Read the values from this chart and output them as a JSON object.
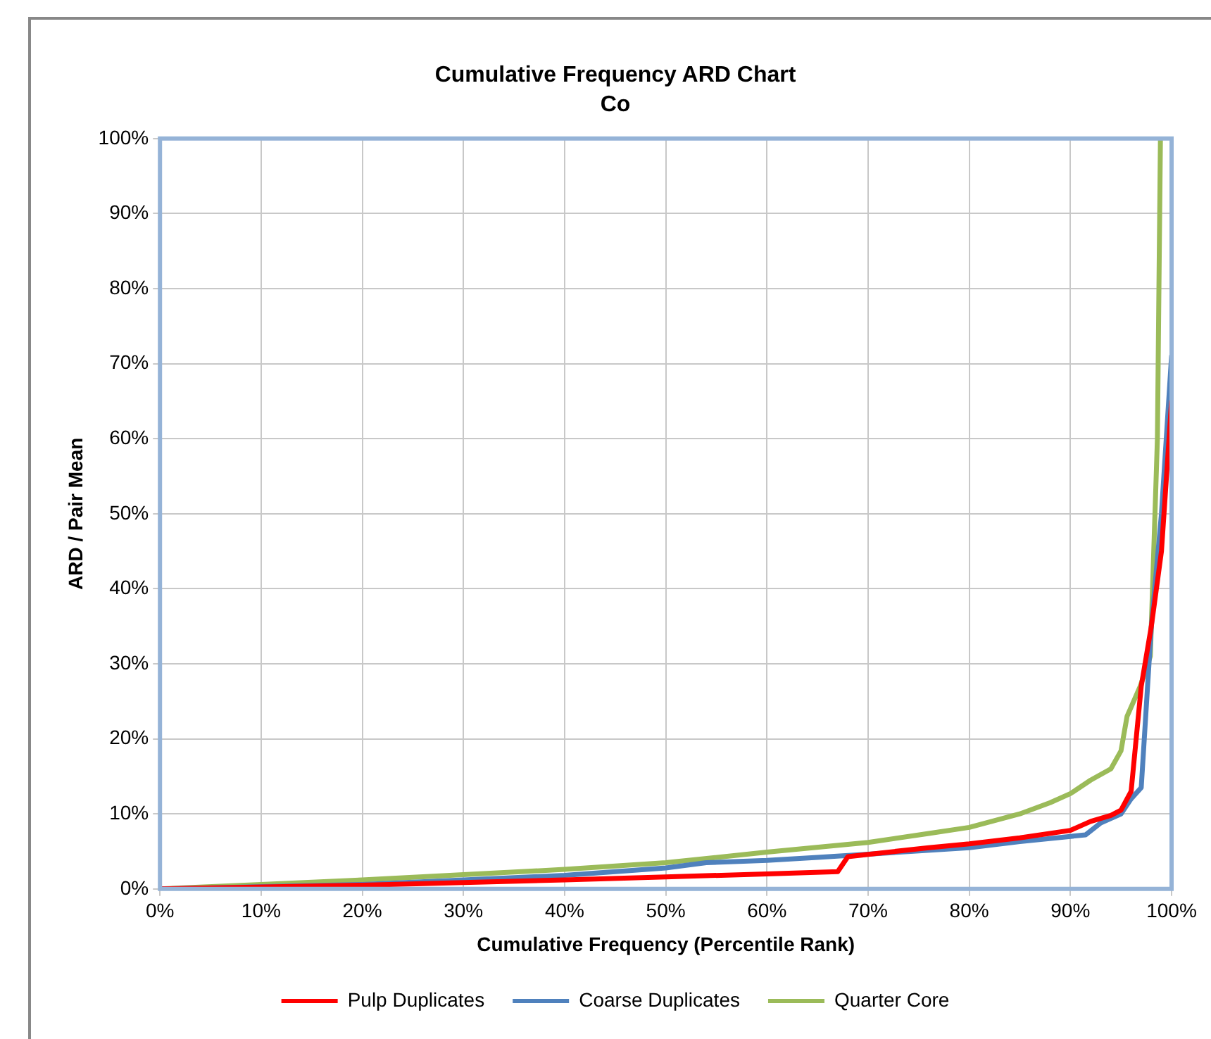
{
  "chart_data": {
    "type": "line",
    "title": "Cumulative Frequency ARD Chart",
    "subtitle": "Co",
    "xlabel": "Cumulative Frequency (Percentile Rank)",
    "ylabel": "ARD / Pair Mean",
    "xlim": [
      0,
      100
    ],
    "ylim": [
      0,
      100
    ],
    "xticks": [
      {
        "value": 0,
        "label": "0%"
      },
      {
        "value": 10,
        "label": "10%"
      },
      {
        "value": 20,
        "label": "20%"
      },
      {
        "value": 30,
        "label": "30%"
      },
      {
        "value": 40,
        "label": "40%"
      },
      {
        "value": 50,
        "label": "50%"
      },
      {
        "value": 60,
        "label": "60%"
      },
      {
        "value": 70,
        "label": "70%"
      },
      {
        "value": 80,
        "label": "80%"
      },
      {
        "value": 90,
        "label": "90%"
      },
      {
        "value": 100,
        "label": "100%"
      }
    ],
    "yticks": [
      {
        "value": 0,
        "label": "0%"
      },
      {
        "value": 10,
        "label": "10%"
      },
      {
        "value": 20,
        "label": "20%"
      },
      {
        "value": 30,
        "label": "30%"
      },
      {
        "value": 40,
        "label": "40%"
      },
      {
        "value": 50,
        "label": "50%"
      },
      {
        "value": 60,
        "label": "60%"
      },
      {
        "value": 70,
        "label": "70%"
      },
      {
        "value": 80,
        "label": "80%"
      },
      {
        "value": 90,
        "label": "90%"
      },
      {
        "value": 100,
        "label": "100%"
      }
    ],
    "grid": true,
    "legend": "bottom",
    "marker": "none",
    "line_style": "solid",
    "series": [
      {
        "name": "Pulp Duplicates",
        "color": "#ff0000",
        "x": [
          0,
          20,
          40,
          50,
          60,
          67,
          68,
          70,
          76,
          80,
          85,
          90,
          92,
          94,
          95,
          96,
          97,
          98,
          99,
          100
        ],
        "values": [
          0,
          0.5,
          1.2,
          1.6,
          2,
          2.3,
          4.3,
          4.6,
          5.5,
          6,
          6.8,
          7.8,
          9,
          9.8,
          10.5,
          13,
          27,
          35,
          45,
          65
        ]
      },
      {
        "name": "Coarse Duplicates",
        "color": "#4f81bd",
        "x": [
          0,
          20,
          30,
          40,
          50,
          54,
          60,
          65,
          80,
          85,
          90,
          91.5,
          93,
          95,
          96,
          97,
          98,
          99,
          100
        ],
        "values": [
          0,
          0.6,
          1.2,
          1.8,
          2.8,
          3.5,
          3.8,
          4.2,
          5.5,
          6.3,
          7,
          7.2,
          8.8,
          10,
          12,
          13.5,
          35,
          50,
          71
        ]
      },
      {
        "name": "Quarter Core",
        "color": "#9bbb59",
        "x": [
          0,
          10,
          20,
          30,
          40,
          50,
          60,
          70,
          76,
          80,
          85,
          88,
          90,
          92,
          94,
          95,
          95.6,
          96.9,
          97.9,
          98.6,
          98.9
        ],
        "values": [
          0,
          0.6,
          1.2,
          1.9,
          2.6,
          3.5,
          4.9,
          6.2,
          7.4,
          8.2,
          10,
          11.5,
          12.7,
          14.5,
          16,
          18.4,
          23,
          27,
          31,
          60,
          100
        ]
      }
    ]
  }
}
